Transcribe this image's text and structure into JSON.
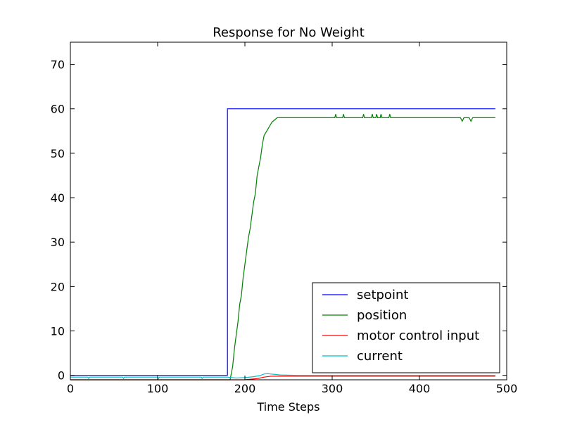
{
  "chart_data": {
    "type": "line",
    "title": "Response for No Weight",
    "xlabel": "Time Steps",
    "ylabel": "",
    "xlim": [
      0,
      500
    ],
    "ylim": [
      -1,
      75
    ],
    "xticks": [
      0,
      100,
      200,
      300,
      400,
      500
    ],
    "yticks": [
      0,
      10,
      20,
      30,
      40,
      50,
      60,
      70
    ],
    "grid": false,
    "legend_position": "lower-right",
    "series": [
      {
        "name": "setpoint",
        "color": "#0000ff",
        "points": [
          [
            0,
            0
          ],
          [
            180,
            0
          ],
          [
            180,
            60
          ],
          [
            487,
            60
          ]
        ]
      },
      {
        "name": "position",
        "color": "#008000",
        "points": [
          [
            0,
            -1
          ],
          [
            183,
            -1
          ],
          [
            186,
            2
          ],
          [
            188,
            6
          ],
          [
            190,
            9
          ],
          [
            192,
            12
          ],
          [
            194,
            16
          ],
          [
            196,
            18
          ],
          [
            198,
            22
          ],
          [
            200,
            25
          ],
          [
            202,
            28
          ],
          [
            204,
            31
          ],
          [
            206,
            33
          ],
          [
            208,
            36
          ],
          [
            210,
            39
          ],
          [
            212,
            41
          ],
          [
            214,
            45
          ],
          [
            216,
            47
          ],
          [
            218,
            49
          ],
          [
            220,
            52
          ],
          [
            222,
            54
          ],
          [
            225,
            55
          ],
          [
            228,
            56
          ],
          [
            231,
            57
          ],
          [
            234,
            57.5
          ],
          [
            237,
            58
          ],
          [
            240,
            58
          ],
          [
            303,
            58
          ],
          [
            304,
            58.8
          ],
          [
            305,
            58
          ],
          [
            312,
            58
          ],
          [
            313,
            58.8
          ],
          [
            314,
            58
          ],
          [
            335,
            58
          ],
          [
            336,
            58.8
          ],
          [
            337,
            58
          ],
          [
            345,
            58
          ],
          [
            346,
            58.8
          ],
          [
            347,
            58
          ],
          [
            350,
            58
          ],
          [
            351,
            58.8
          ],
          [
            352,
            58
          ],
          [
            355,
            58
          ],
          [
            356,
            58.8
          ],
          [
            357,
            58
          ],
          [
            365,
            58
          ],
          [
            366,
            58.8
          ],
          [
            367,
            58
          ],
          [
            447,
            58
          ],
          [
            449,
            57.2
          ],
          [
            451,
            58
          ],
          [
            457,
            58
          ],
          [
            459,
            57.2
          ],
          [
            461,
            58
          ],
          [
            487,
            58
          ]
        ]
      },
      {
        "name": "motor control input",
        "color": "#ff0000",
        "points": [
          [
            0,
            -1
          ],
          [
            200,
            -1
          ],
          [
            215,
            -0.7
          ],
          [
            222,
            -0.4
          ],
          [
            230,
            -0.2
          ],
          [
            260,
            -0.2
          ],
          [
            487,
            -0.2
          ]
        ]
      },
      {
        "name": "current",
        "color": "#00bfbf",
        "points": [
          [
            0,
            -0.4
          ],
          [
            20,
            -0.4
          ],
          [
            21,
            -0.7
          ],
          [
            22,
            -0.4
          ],
          [
            60,
            -0.4
          ],
          [
            61,
            -0.7
          ],
          [
            62,
            -0.4
          ],
          [
            100,
            -0.4
          ],
          [
            101,
            -0.7
          ],
          [
            102,
            -0.4
          ],
          [
            150,
            -0.4
          ],
          [
            151,
            -0.7
          ],
          [
            152,
            -0.4
          ],
          [
            180,
            -0.4
          ],
          [
            190,
            -0.6
          ],
          [
            200,
            -0.5
          ],
          [
            210,
            -0.3
          ],
          [
            218,
            0
          ],
          [
            222,
            0.3
          ],
          [
            226,
            0.4
          ],
          [
            230,
            0.3
          ],
          [
            235,
            0.2
          ],
          [
            240,
            0.1
          ],
          [
            260,
            0
          ],
          [
            487,
            0
          ]
        ]
      }
    ]
  }
}
